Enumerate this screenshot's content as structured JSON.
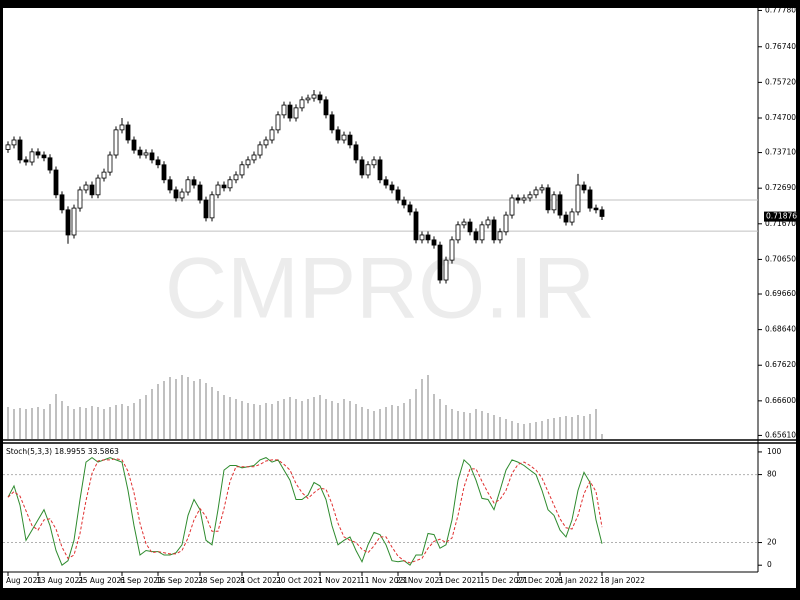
{
  "chart_data": [
    {
      "type": "candlestick",
      "watermark": "CMPRO.IR",
      "categories": [
        "Aug 2021",
        null,
        null,
        null,
        null,
        "13 Aug 2021",
        null,
        null,
        null,
        null,
        null,
        null,
        "25 Aug 2021",
        null,
        null,
        null,
        null,
        null,
        null,
        "6 Sep 2021",
        null,
        null,
        null,
        null,
        null,
        "16 Sep 2021",
        null,
        null,
        null,
        null,
        null,
        null,
        "28 Sep 2021",
        null,
        null,
        null,
        null,
        null,
        null,
        "8 Oct 2021",
        null,
        null,
        null,
        null,
        null,
        "20 Oct 2021",
        null,
        null,
        null,
        null,
        null,
        null,
        "1 Nov 2021",
        null,
        null,
        null,
        null,
        null,
        null,
        "11 Nov 2021",
        null,
        null,
        null,
        null,
        null,
        "23 Nov 2021",
        null,
        null,
        null,
        null,
        null,
        null,
        "3 Dec 2021",
        null,
        null,
        null,
        null,
        null,
        null,
        "15 Dec 2021",
        null,
        null,
        null,
        null,
        null,
        "27 Dec 2021",
        null,
        null,
        null,
        null,
        null,
        null,
        "6 Jan 2022",
        null,
        null,
        null,
        null,
        null,
        null,
        "18 Jan 2022"
      ],
      "open": [
        0.738,
        0.7393,
        0.7407,
        0.735,
        0.7344,
        0.7373,
        0.7364,
        0.7356,
        0.7321,
        0.725,
        0.7207,
        0.7135,
        0.7212,
        0.7264,
        0.7278,
        0.725,
        0.7298,
        0.7315,
        0.7364,
        0.7436,
        0.745,
        0.7407,
        0.7378,
        0.7364,
        0.737,
        0.735,
        0.7336,
        0.7293,
        0.7264,
        0.7241,
        0.7258,
        0.7293,
        0.7278,
        0.7235,
        0.7184,
        0.725,
        0.7278,
        0.727,
        0.7293,
        0.7307,
        0.7336,
        0.735,
        0.7364,
        0.7393,
        0.7407,
        0.7436,
        0.7479,
        0.7507,
        0.747,
        0.7499,
        0.7522,
        0.7527,
        0.7536,
        0.7522,
        0.7479,
        0.7436,
        0.7407,
        0.7421,
        0.7393,
        0.735,
        0.7307,
        0.7336,
        0.735,
        0.7293,
        0.7278,
        0.7264,
        0.7235,
        0.7221,
        0.7201,
        0.7121,
        0.7135,
        0.7121,
        0.7106,
        0.7006,
        0.7063,
        0.7121,
        0.7164,
        0.7172,
        0.7144,
        0.7121,
        0.7164,
        0.7178,
        0.7121,
        0.7144,
        0.7192,
        0.7241,
        0.7235,
        0.7241,
        0.725,
        0.7264,
        0.727,
        0.7207,
        0.725,
        0.7192,
        0.7172,
        0.7201,
        0.7278,
        0.7264,
        0.7212,
        0.7207
      ],
      "high": [
        0.7403,
        0.7417,
        0.7417,
        0.736,
        0.7383,
        0.7383,
        0.7374,
        0.7366,
        0.7331,
        0.726,
        0.7217,
        0.7222,
        0.7274,
        0.7288,
        0.7288,
        0.7308,
        0.7325,
        0.7374,
        0.7446,
        0.747,
        0.746,
        0.7417,
        0.7388,
        0.738,
        0.738,
        0.736,
        0.7346,
        0.7303,
        0.7274,
        0.7268,
        0.7303,
        0.7303,
        0.7288,
        0.7245,
        0.726,
        0.7288,
        0.7288,
        0.7303,
        0.7317,
        0.7346,
        0.736,
        0.7374,
        0.7403,
        0.7417,
        0.7446,
        0.7489,
        0.7517,
        0.7517,
        0.7509,
        0.7532,
        0.7537,
        0.755,
        0.7546,
        0.7532,
        0.7489,
        0.7446,
        0.7431,
        0.7431,
        0.7403,
        0.736,
        0.7346,
        0.736,
        0.736,
        0.7303,
        0.7288,
        0.7274,
        0.7245,
        0.7231,
        0.7211,
        0.7145,
        0.7145,
        0.7131,
        0.7116,
        0.7073,
        0.7131,
        0.7174,
        0.7182,
        0.7182,
        0.7154,
        0.7174,
        0.7188,
        0.7188,
        0.7154,
        0.7202,
        0.7251,
        0.7251,
        0.7251,
        0.726,
        0.7274,
        0.728,
        0.728,
        0.726,
        0.726,
        0.7202,
        0.7211,
        0.731,
        0.7288,
        0.7274,
        0.7222,
        0.7217
      ],
      "low": [
        0.737,
        0.7383,
        0.734,
        0.7334,
        0.7334,
        0.7354,
        0.7346,
        0.7311,
        0.724,
        0.7197,
        0.711,
        0.7125,
        0.7202,
        0.7254,
        0.724,
        0.724,
        0.7288,
        0.7305,
        0.7354,
        0.7426,
        0.7397,
        0.7368,
        0.7354,
        0.7354,
        0.734,
        0.7326,
        0.7283,
        0.7254,
        0.7231,
        0.7231,
        0.7248,
        0.7268,
        0.7225,
        0.7174,
        0.7174,
        0.724,
        0.726,
        0.726,
        0.7283,
        0.7297,
        0.7326,
        0.734,
        0.7354,
        0.7383,
        0.7397,
        0.7426,
        0.7469,
        0.746,
        0.746,
        0.7489,
        0.7512,
        0.7517,
        0.7512,
        0.7469,
        0.7426,
        0.7397,
        0.7397,
        0.7383,
        0.734,
        0.7297,
        0.7297,
        0.7326,
        0.7283,
        0.7268,
        0.7254,
        0.7225,
        0.7211,
        0.7191,
        0.7111,
        0.7111,
        0.7111,
        0.7096,
        0.6996,
        0.6996,
        0.7053,
        0.7111,
        0.7154,
        0.7134,
        0.7111,
        0.7111,
        0.7154,
        0.7111,
        0.7111,
        0.7134,
        0.7182,
        0.7225,
        0.7225,
        0.7231,
        0.724,
        0.7254,
        0.7197,
        0.7197,
        0.7182,
        0.7162,
        0.7162,
        0.7191,
        0.7254,
        0.7202,
        0.7197,
        0.7178
      ],
      "close": [
        0.7393,
        0.7407,
        0.735,
        0.7344,
        0.7373,
        0.7364,
        0.7356,
        0.7321,
        0.725,
        0.7207,
        0.7135,
        0.7212,
        0.7264,
        0.7278,
        0.725,
        0.7298,
        0.7315,
        0.7364,
        0.7436,
        0.745,
        0.7407,
        0.7378,
        0.7364,
        0.737,
        0.735,
        0.7336,
        0.7293,
        0.7264,
        0.7241,
        0.7258,
        0.7293,
        0.7278,
        0.7235,
        0.7184,
        0.725,
        0.7278,
        0.727,
        0.7293,
        0.7307,
        0.7336,
        0.735,
        0.7364,
        0.7393,
        0.7407,
        0.7436,
        0.7479,
        0.7507,
        0.747,
        0.7499,
        0.7522,
        0.7527,
        0.7536,
        0.7522,
        0.7479,
        0.7436,
        0.7407,
        0.7421,
        0.7393,
        0.735,
        0.7307,
        0.7336,
        0.735,
        0.7293,
        0.7278,
        0.7264,
        0.7235,
        0.7221,
        0.7201,
        0.7121,
        0.7135,
        0.7121,
        0.7106,
        0.7006,
        0.7063,
        0.7121,
        0.7164,
        0.7172,
        0.7144,
        0.7121,
        0.7164,
        0.7178,
        0.7121,
        0.7144,
        0.7192,
        0.7241,
        0.7235,
        0.7241,
        0.725,
        0.7264,
        0.727,
        0.7207,
        0.725,
        0.7192,
        0.7172,
        0.7201,
        0.7278,
        0.7264,
        0.7212,
        0.7207,
        0.7188
      ],
      "volume": [
        32,
        30,
        31,
        30,
        31,
        32,
        30,
        35,
        45,
        38,
        33,
        30,
        32,
        31,
        33,
        32,
        30,
        32,
        34,
        35,
        33,
        36,
        40,
        44,
        50,
        55,
        58,
        62,
        60,
        64,
        62,
        58,
        60,
        56,
        52,
        48,
        44,
        42,
        40,
        38,
        36,
        35,
        34,
        36,
        35,
        38,
        40,
        42,
        40,
        38,
        40,
        42,
        44,
        40,
        38,
        36,
        40,
        38,
        35,
        32,
        30,
        28,
        30,
        32,
        34,
        33,
        36,
        40,
        50,
        60,
        64,
        45,
        40,
        34,
        30,
        28,
        27,
        26,
        30,
        28,
        26,
        24,
        22,
        20,
        18,
        16,
        15,
        16,
        17,
        18,
        20,
        21,
        22,
        23,
        22,
        24,
        23,
        25,
        30,
        5
      ],
      "volume_color": "#808080",
      "up_color": "#ffffff",
      "down_color": "#000000",
      "ylim": [
        0.6545,
        0.7785
      ],
      "yticks": [
        {
          "value": 0.7778,
          "label": "0.77780"
        },
        {
          "value": 0.7674,
          "label": "0.76740"
        },
        {
          "value": 0.7572,
          "label": "0.75720"
        },
        {
          "value": 0.747,
          "label": "0.74700"
        },
        {
          "value": 0.7371,
          "label": "0.73710"
        },
        {
          "value": 0.7269,
          "label": "0.72690"
        },
        {
          "value": 0.7167,
          "label": "0.71670"
        },
        {
          "value": 0.7065,
          "label": "0.70650"
        },
        {
          "value": 0.6966,
          "label": "0.69660"
        },
        {
          "value": 0.6864,
          "label": "0.68640"
        },
        {
          "value": 0.6762,
          "label": "0.67620"
        },
        {
          "value": 0.666,
          "label": "0.66600"
        },
        {
          "value": 0.6561,
          "label": "0.65610"
        }
      ],
      "last_price": {
        "value": 0.71876,
        "label": "0.71876"
      },
      "hlines": [
        0.7235,
        0.7146
      ]
    },
    {
      "type": "line",
      "title": "Stoch(5,3,3) 18.9955 33.5863",
      "ylim": [
        -6,
        107
      ],
      "yticks": [
        0,
        20,
        80,
        100
      ],
      "levels": [
        20,
        80
      ],
      "series": [
        {
          "color": "#2e8b2e",
          "dash": false,
          "values": [
            60,
            70,
            53,
            22,
            31,
            40,
            49,
            35,
            13,
            0,
            4,
            22,
            58,
            91,
            95,
            91,
            93,
            95,
            93,
            91,
            66,
            35,
            9,
            13,
            12,
            12,
            9,
            9,
            11,
            18,
            44,
            58,
            49,
            22,
            18,
            49,
            84,
            88,
            88,
            86,
            87,
            88,
            93,
            95,
            91,
            93,
            84,
            75,
            58,
            58,
            62,
            73,
            70,
            58,
            35,
            18,
            22,
            25,
            13,
            3,
            18,
            29,
            27,
            18,
            4,
            3,
            4,
            0,
            9,
            9,
            28,
            27,
            15,
            18,
            40,
            75,
            93,
            88,
            75,
            59,
            58,
            49,
            66,
            84,
            93,
            91,
            88,
            84,
            80,
            66,
            49,
            44,
            31,
            25,
            40,
            66,
            82,
            73,
            40,
            18.9955
          ]
        },
        {
          "color": "#e03030",
          "dash": true,
          "values": [
            60,
            65,
            61,
            48,
            35,
            31,
            40,
            41,
            32,
            16,
            6,
            9,
            28,
            57,
            81,
            92,
            93,
            93,
            94,
            93,
            83,
            64,
            37,
            19,
            11,
            12,
            11,
            10,
            10,
            13,
            24,
            40,
            50,
            43,
            30,
            30,
            50,
            74,
            87,
            87,
            87,
            87,
            89,
            92,
            93,
            93,
            89,
            84,
            72,
            64,
            59,
            64,
            68,
            67,
            54,
            37,
            25,
            22,
            20,
            14,
            11,
            17,
            25,
            25,
            16,
            8,
            4,
            2,
            4,
            6,
            15,
            21,
            23,
            20,
            24,
            44,
            69,
            85,
            85,
            74,
            64,
            55,
            58,
            66,
            81,
            89,
            91,
            88,
            84,
            77,
            65,
            53,
            41,
            33,
            32,
            44,
            63,
            74,
            65,
            33.5863
          ]
        }
      ]
    }
  ]
}
